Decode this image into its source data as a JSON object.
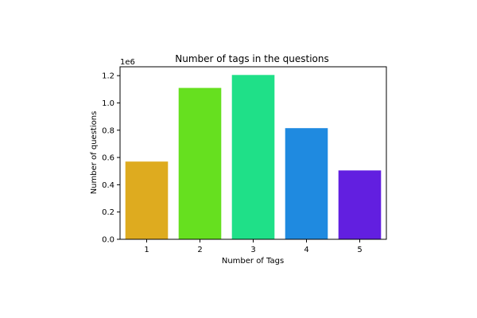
{
  "chart_data": {
    "type": "bar",
    "title": "Number of tags in the questions",
    "xlabel": "Number of Tags",
    "ylabel": "Number of questions",
    "y_offset_label": "1e6",
    "categories": [
      "1",
      "2",
      "3",
      "4",
      "5"
    ],
    "values": [
      570000,
      1110000,
      1205000,
      815000,
      505000
    ],
    "ylim": [
      0,
      1265000
    ],
    "yticks": [
      0,
      200000,
      400000,
      600000,
      800000,
      1000000,
      1200000
    ],
    "ytick_labels": [
      "0.0",
      "0.2",
      "0.4",
      "0.6",
      "0.8",
      "1.0",
      "1.2"
    ],
    "colors": [
      "#deab1f",
      "#66e01f",
      "#1fe088",
      "#1f8ae0",
      "#621fe0"
    ],
    "grid": false,
    "legend": "none"
  }
}
